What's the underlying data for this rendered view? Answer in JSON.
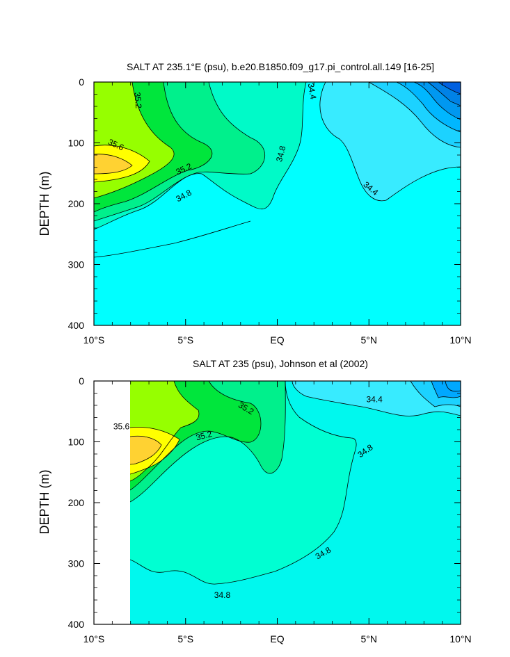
{
  "chart_data": [
    {
      "type": "contour",
      "title": "SALT AT 235.1°E (psu), b.e20.B1850.f09_g17.pi_control.all.149 [16-25]",
      "ylabel": "DEPTH (m)",
      "xlabel": "",
      "xlim": [
        -10,
        10
      ],
      "ylim": [
        0,
        400
      ],
      "y_inverted": true,
      "x_ticks": [
        {
          "value": -10,
          "label": "10°S"
        },
        {
          "value": -5,
          "label": "5°S"
        },
        {
          "value": 0,
          "label": "EQ"
        },
        {
          "value": 5,
          "label": "5°N"
        },
        {
          "value": 10,
          "label": "10°N"
        }
      ],
      "y_ticks": [
        {
          "value": 0,
          "label": "0"
        },
        {
          "value": 100,
          "label": "100"
        },
        {
          "value": 200,
          "label": "200"
        },
        {
          "value": 300,
          "label": "300"
        },
        {
          "value": 400,
          "label": "400"
        }
      ],
      "contour_labels": [
        {
          "text": "35.2",
          "x": -7.6,
          "y": 30,
          "angle": 85
        },
        {
          "text": "35.6",
          "x": -8.8,
          "y": 103,
          "angle": 25
        },
        {
          "text": "35.2",
          "x": -5.1,
          "y": 143,
          "angle": -25
        },
        {
          "text": "34.8",
          "x": -5.1,
          "y": 187,
          "angle": -28
        },
        {
          "text": "34.8",
          "x": 0.2,
          "y": 118,
          "angle": -75
        },
        {
          "text": "34.4",
          "x": 1.9,
          "y": 15,
          "angle": 80
        },
        {
          "text": "34.4",
          "x": 5.1,
          "y": 175,
          "angle": 40
        }
      ]
    },
    {
      "type": "contour",
      "title": "SALT AT 235 (psu), Johnson et al (2002)",
      "ylabel": "DEPTH (m)",
      "xlabel": "",
      "xlim": [
        -10,
        10
      ],
      "ylim": [
        0,
        400
      ],
      "y_inverted": true,
      "x_ticks": [
        {
          "value": -10,
          "label": "10°S"
        },
        {
          "value": -5,
          "label": "5°S"
        },
        {
          "value": 0,
          "label": "EQ"
        },
        {
          "value": 5,
          "label": "5°N"
        },
        {
          "value": 10,
          "label": "10°N"
        }
      ],
      "y_ticks": [
        {
          "value": 0,
          "label": "0"
        },
        {
          "value": 100,
          "label": "100"
        },
        {
          "value": 200,
          "label": "200"
        },
        {
          "value": 300,
          "label": "300"
        },
        {
          "value": 400,
          "label": "400"
        }
      ],
      "contour_labels": [
        {
          "text": "35.2",
          "x": -1.7,
          "y": 45,
          "angle": 30
        },
        {
          "text": "35.6",
          "x": -8.5,
          "y": 75,
          "angle": 0
        },
        {
          "text": "35.2",
          "x": -4.0,
          "y": 90,
          "angle": -15
        },
        {
          "text": "34.8",
          "x": 4.8,
          "y": 115,
          "angle": -35
        },
        {
          "text": "34.4",
          "x": 5.3,
          "y": 30,
          "angle": 0
        },
        {
          "text": "34.8",
          "x": 2.5,
          "y": 283,
          "angle": -30
        },
        {
          "text": "34.8",
          "x": -3.0,
          "y": 352,
          "angle": 0
        }
      ]
    }
  ]
}
